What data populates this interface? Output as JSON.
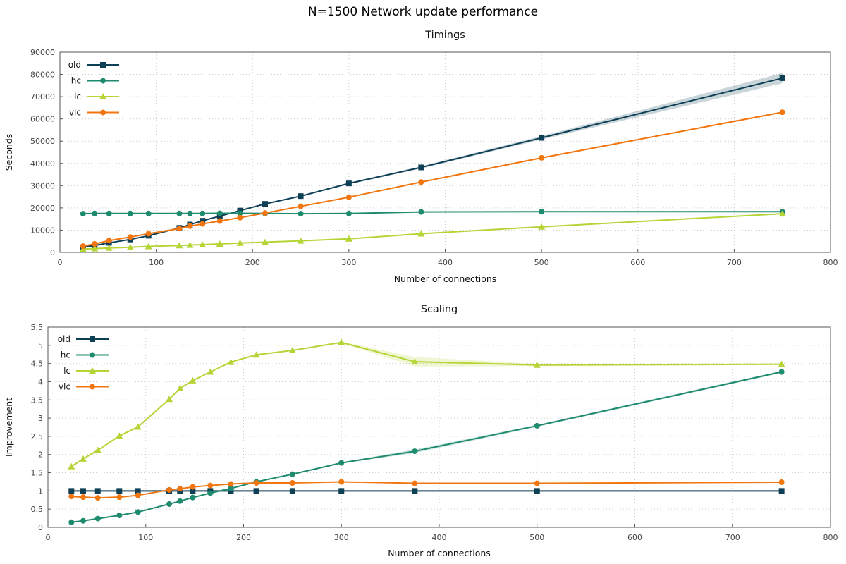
{
  "figure_title": "N=1500 Network update performance",
  "colors": {
    "old": "#0d3f55",
    "hc": "#1e8a6e",
    "lc": "#b5d435",
    "vlc": "#f27610",
    "grid": "#cccccc",
    "axis": "#555555"
  },
  "chart_data": [
    {
      "type": "line",
      "title": "Timings",
      "xlabel": "Number of connections",
      "ylabel": "Seconds",
      "xlim": [
        0,
        800
      ],
      "ylim": [
        0,
        90000
      ],
      "xticks": [
        0,
        100,
        200,
        300,
        400,
        500,
        600,
        700,
        800
      ],
      "yticks": [
        0,
        10000,
        20000,
        30000,
        40000,
        50000,
        60000,
        70000,
        80000,
        90000
      ],
      "xtick_labels": [
        "0",
        "100",
        "200",
        "300",
        "400",
        "500",
        "600",
        "700",
        "800"
      ],
      "ytick_labels": [
        "0",
        "10000",
        "20000",
        "30000",
        "40000",
        "50000",
        "60000",
        "70000",
        "80000",
        "90000"
      ],
      "grid": true,
      "legend_position": "top-left",
      "x": [
        24,
        36,
        51,
        73,
        92,
        124,
        135,
        148,
        166,
        187,
        213,
        250,
        300,
        375,
        500,
        750
      ],
      "series": [
        {
          "name": "old",
          "marker": "square",
          "values": [
            2300,
            3100,
            4300,
            5800,
            7500,
            11000,
            12500,
            14200,
            16300,
            18800,
            21800,
            25300,
            31000,
            38200,
            51500,
            78300
          ],
          "band": [
            200,
            200,
            200,
            200,
            200,
            200,
            200,
            250,
            250,
            300,
            300,
            300,
            400,
            500,
            800,
            2300
          ]
        },
        {
          "name": "hc",
          "marker": "circle",
          "values": [
            17400,
            17500,
            17500,
            17500,
            17500,
            17500,
            17500,
            17500,
            17600,
            17600,
            17500,
            17400,
            17500,
            18200,
            18300,
            18300
          ],
          "band": [
            100,
            100,
            100,
            100,
            100,
            100,
            100,
            100,
            100,
            100,
            100,
            100,
            100,
            100,
            100,
            100
          ]
        },
        {
          "name": "lc",
          "marker": "triangle",
          "values": [
            1500,
            1700,
            2000,
            2300,
            2700,
            3100,
            3300,
            3500,
            3800,
            4200,
            4600,
            5200,
            6100,
            8400,
            11500,
            17400
          ],
          "band": [
            50,
            50,
            50,
            50,
            50,
            50,
            50,
            50,
            50,
            50,
            50,
            50,
            60,
            80,
            100,
            150
          ]
        },
        {
          "name": "vlc",
          "marker": "circle",
          "values": [
            2800,
            3800,
            5300,
            6900,
            8400,
            10700,
            11800,
            12800,
            14100,
            15600,
            17700,
            20700,
            24800,
            31600,
            42500,
            63000
          ],
          "band": [
            100,
            100,
            100,
            100,
            100,
            100,
            100,
            100,
            120,
            120,
            150,
            150,
            200,
            250,
            300,
            400
          ]
        }
      ]
    },
    {
      "type": "line",
      "title": "Scaling",
      "xlabel": "Number of connections",
      "ylabel": "Improvement",
      "xlim": [
        0,
        800
      ],
      "ylim": [
        0,
        5.5
      ],
      "xticks": [
        0,
        100,
        200,
        300,
        400,
        500,
        600,
        700,
        800
      ],
      "yticks": [
        0,
        0.5,
        1,
        1.5,
        2,
        2.5,
        3,
        3.5,
        4,
        4.5,
        5,
        5.5
      ],
      "xtick_labels": [
        "0",
        "100",
        "200",
        "300",
        "400",
        "500",
        "600",
        "700",
        "800"
      ],
      "ytick_labels": [
        "0",
        "0.5",
        "1",
        "1.5",
        "2",
        "2.5",
        "3",
        "3.5",
        "4",
        "4.5",
        "5",
        "5.5"
      ],
      "grid": true,
      "legend_position": "top-left",
      "x": [
        24,
        36,
        51,
        73,
        92,
        124,
        135,
        148,
        166,
        187,
        213,
        250,
        300,
        375,
        500,
        750
      ],
      "series": [
        {
          "name": "old",
          "marker": "square",
          "values": [
            1,
            1,
            1,
            1,
            1,
            1,
            1,
            1,
            1,
            1,
            1,
            1,
            1,
            1,
            1,
            1
          ],
          "band": [
            0,
            0,
            0,
            0,
            0,
            0,
            0,
            0,
            0,
            0,
            0,
            0,
            0,
            0,
            0,
            0
          ]
        },
        {
          "name": "hc",
          "marker": "circle",
          "values": [
            0.14,
            0.18,
            0.24,
            0.33,
            0.42,
            0.64,
            0.72,
            0.82,
            0.94,
            1.07,
            1.25,
            1.46,
            1.77,
            2.09,
            2.79,
            4.27
          ],
          "band": [
            0.01,
            0.01,
            0.01,
            0.01,
            0.01,
            0.01,
            0.01,
            0.01,
            0.01,
            0.01,
            0.01,
            0.01,
            0.02,
            0.05,
            0.03,
            0.03
          ]
        },
        {
          "name": "lc",
          "marker": "triangle",
          "values": [
            1.67,
            1.88,
            2.12,
            2.51,
            2.76,
            3.52,
            3.82,
            4.03,
            4.27,
            4.54,
            4.74,
            4.86,
            5.08,
            4.55,
            4.46,
            4.48
          ],
          "band": [
            0.01,
            0.01,
            0.01,
            0.01,
            0.01,
            0.01,
            0.01,
            0.01,
            0.01,
            0.01,
            0.01,
            0.01,
            0.02,
            0.13,
            0.03,
            0.02
          ]
        },
        {
          "name": "vlc",
          "marker": "circle",
          "values": [
            0.85,
            0.83,
            0.81,
            0.83,
            0.88,
            1.03,
            1.06,
            1.11,
            1.15,
            1.19,
            1.22,
            1.22,
            1.25,
            1.21,
            1.21,
            1.24
          ],
          "band": [
            0.01,
            0.01,
            0.01,
            0.01,
            0.01,
            0.01,
            0.01,
            0.01,
            0.01,
            0.01,
            0.01,
            0.01,
            0.01,
            0.01,
            0.01,
            0.01
          ]
        }
      ]
    }
  ]
}
